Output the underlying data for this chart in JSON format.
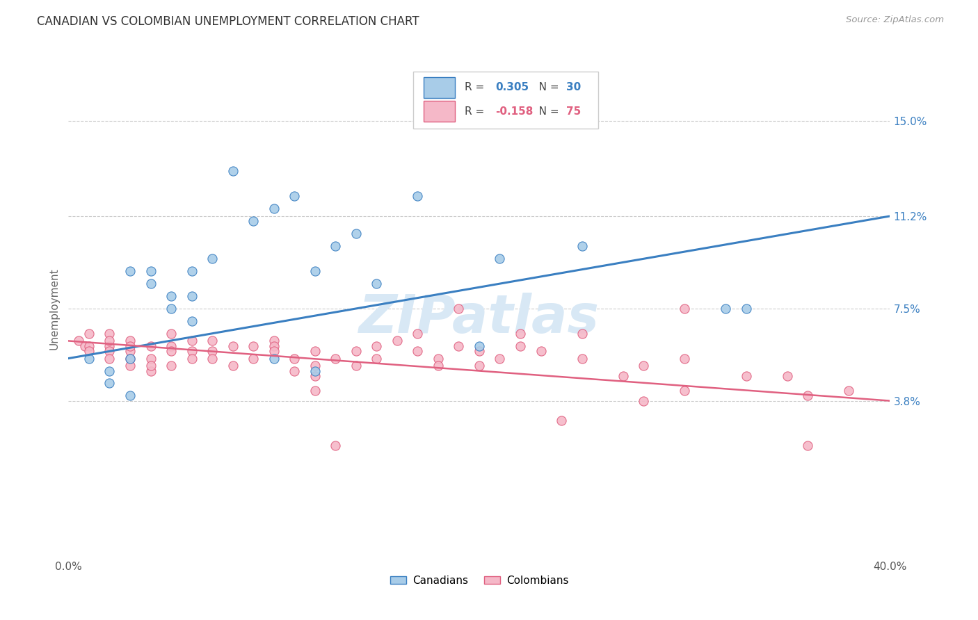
{
  "title": "CANADIAN VS COLOMBIAN UNEMPLOYMENT CORRELATION CHART",
  "source": "Source: ZipAtlas.com",
  "ylabel": "Unemployment",
  "xlim": [
    0.0,
    0.4
  ],
  "ylim": [
    -0.025,
    0.175
  ],
  "xticks": [
    0.0,
    0.1,
    0.2,
    0.3,
    0.4
  ],
  "xtick_labels": [
    "0.0%",
    "",
    "",
    "",
    "40.0%"
  ],
  "ytick_labels_right": [
    "3.8%",
    "7.5%",
    "11.2%",
    "15.0%"
  ],
  "ytick_vals_right": [
    0.038,
    0.075,
    0.112,
    0.15
  ],
  "canadians_R": 0.305,
  "canadians_N": 30,
  "colombians_R": -0.158,
  "colombians_N": 75,
  "canadians_color": "#a8cce8",
  "colombians_color": "#f5b8c8",
  "canadian_line_color": "#3a7fc1",
  "colombian_line_color": "#e06080",
  "watermark_color": "#d8e8f5",
  "canadians_x": [
    0.01,
    0.02,
    0.03,
    0.03,
    0.04,
    0.04,
    0.05,
    0.05,
    0.06,
    0.06,
    0.06,
    0.07,
    0.08,
    0.09,
    0.1,
    0.11,
    0.12,
    0.13,
    0.14,
    0.15,
    0.17,
    0.2,
    0.21,
    0.25,
    0.32,
    0.33,
    0.02,
    0.03,
    0.1,
    0.12
  ],
  "canadians_y": [
    0.055,
    0.05,
    0.055,
    0.09,
    0.09,
    0.085,
    0.08,
    0.075,
    0.07,
    0.08,
    0.09,
    0.095,
    0.13,
    0.11,
    0.115,
    0.12,
    0.09,
    0.1,
    0.105,
    0.085,
    0.12,
    0.06,
    0.095,
    0.1,
    0.075,
    0.075,
    0.045,
    0.04,
    0.055,
    0.05
  ],
  "colombians_x": [
    0.005,
    0.008,
    0.01,
    0.01,
    0.01,
    0.02,
    0.02,
    0.02,
    0.02,
    0.02,
    0.03,
    0.03,
    0.03,
    0.03,
    0.03,
    0.04,
    0.04,
    0.04,
    0.04,
    0.05,
    0.05,
    0.05,
    0.05,
    0.06,
    0.06,
    0.06,
    0.07,
    0.07,
    0.07,
    0.08,
    0.08,
    0.09,
    0.09,
    0.1,
    0.1,
    0.1,
    0.11,
    0.11,
    0.12,
    0.12,
    0.12,
    0.13,
    0.14,
    0.14,
    0.15,
    0.15,
    0.16,
    0.17,
    0.17,
    0.18,
    0.18,
    0.19,
    0.2,
    0.2,
    0.21,
    0.22,
    0.23,
    0.25,
    0.27,
    0.28,
    0.3,
    0.3,
    0.33,
    0.36,
    0.38,
    0.24,
    0.19,
    0.25,
    0.28,
    0.13,
    0.22,
    0.3,
    0.35,
    0.36,
    0.12
  ],
  "colombians_y": [
    0.062,
    0.06,
    0.065,
    0.06,
    0.058,
    0.065,
    0.06,
    0.058,
    0.062,
    0.055,
    0.062,
    0.058,
    0.06,
    0.055,
    0.052,
    0.06,
    0.055,
    0.05,
    0.052,
    0.065,
    0.06,
    0.058,
    0.052,
    0.062,
    0.058,
    0.055,
    0.062,
    0.058,
    0.055,
    0.06,
    0.052,
    0.06,
    0.055,
    0.062,
    0.06,
    0.058,
    0.055,
    0.05,
    0.058,
    0.052,
    0.048,
    0.055,
    0.058,
    0.052,
    0.06,
    0.055,
    0.062,
    0.065,
    0.058,
    0.055,
    0.052,
    0.06,
    0.058,
    0.052,
    0.055,
    0.06,
    0.058,
    0.055,
    0.048,
    0.052,
    0.055,
    0.042,
    0.048,
    0.04,
    0.042,
    0.03,
    0.075,
    0.065,
    0.038,
    0.02,
    0.065,
    0.075,
    0.048,
    0.02,
    0.042
  ]
}
